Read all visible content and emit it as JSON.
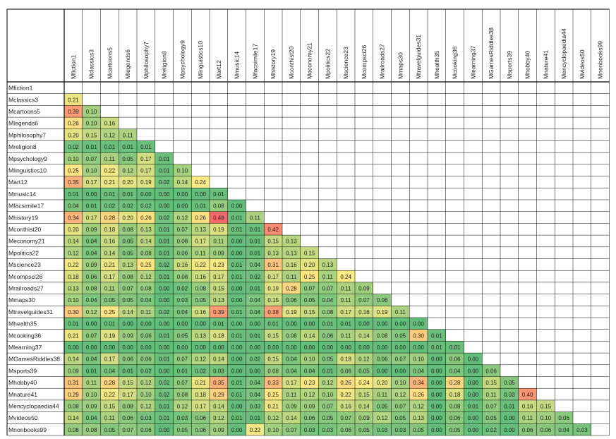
{
  "chart_data": {
    "type": "heatmap",
    "title": "",
    "labels": [
      "Mfiction1",
      "Mclassics3",
      "Mcartoons5",
      "Mlegends6",
      "Mphilosophy7",
      "Mreligion8",
      "Mpsychology9",
      "Mlinguistics10",
      "Mart12",
      "Mmusic14",
      "Mfacsimile17",
      "Mhistory19",
      "Mconthist20",
      "Meconomy21",
      "Mpolitics22",
      "Mscience23",
      "Mcompsci26",
      "Mrailroads27",
      "Mmaps30",
      "Mtravelguides31",
      "Mhealth35",
      "Mcooking36",
      "Mlearning37",
      "MGamesRiddles38",
      "Msports39",
      "Mhobby40",
      "Mnature41",
      "Mencyclopaedia44",
      "Mvideos50",
      "Mnonbooks99"
    ],
    "values": [
      [],
      [
        0.21
      ],
      [
        0.39,
        0.1
      ],
      [
        0.26,
        0.1,
        0.16
      ],
      [
        0.2,
        0.15,
        0.12,
        0.11
      ],
      [
        0.02,
        0.01,
        0.01,
        0.01,
        0.01
      ],
      [
        0.1,
        0.07,
        0.11,
        0.05,
        0.17,
        0.01
      ],
      [
        0.25,
        0.1,
        0.22,
        0.12,
        0.17,
        0.01,
        0.1
      ],
      [
        0.35,
        0.17,
        0.21,
        0.2,
        0.19,
        0.02,
        0.14,
        0.24
      ],
      [
        0.01,
        0.0,
        0.01,
        0.01,
        0.0,
        0.0,
        0.0,
        0.0,
        0.01
      ],
      [
        0.04,
        0.01,
        0.02,
        0.02,
        0.02,
        0.0,
        0.0,
        0.01,
        0.08,
        0.0
      ],
      [
        0.34,
        0.17,
        0.28,
        0.2,
        0.26,
        0.02,
        0.12,
        0.26,
        0.48,
        0.01,
        0.11
      ],
      [
        0.2,
        0.09,
        0.18,
        0.08,
        0.13,
        0.01,
        0.07,
        0.13,
        0.19,
        0.01,
        0.01,
        0.42
      ],
      [
        0.14,
        0.04,
        0.16,
        0.05,
        0.14,
        0.01,
        0.08,
        0.17,
        0.11,
        0.0,
        0.01,
        0.15,
        0.13
      ],
      [
        0.12,
        0.04,
        0.14,
        0.05,
        0.08,
        0.01,
        0.06,
        0.11,
        0.09,
        0.0,
        0.01,
        0.13,
        0.13,
        0.15
      ],
      [
        0.22,
        0.09,
        0.21,
        0.13,
        0.25,
        0.02,
        0.16,
        0.22,
        0.23,
        0.01,
        0.04,
        0.31,
        0.16,
        0.2,
        0.13
      ],
      [
        0.18,
        0.06,
        0.17,
        0.08,
        0.12,
        0.01,
        0.08,
        0.16,
        0.17,
        0.01,
        0.02,
        0.17,
        0.11,
        0.25,
        0.11,
        0.24
      ],
      [
        0.13,
        0.08,
        0.11,
        0.07,
        0.08,
        0.0,
        0.02,
        0.08,
        0.15,
        0.0,
        0.01,
        0.19,
        0.28,
        0.07,
        0.07,
        0.11,
        0.09
      ],
      [
        0.1,
        0.04,
        0.05,
        0.05,
        0.04,
        0.0,
        0.03,
        0.05,
        0.13,
        0.0,
        0.04,
        0.15,
        0.06,
        0.05,
        0.04,
        0.11,
        0.07,
        0.06
      ],
      [
        0.3,
        0.12,
        0.25,
        0.14,
        0.11,
        0.02,
        0.04,
        0.16,
        0.39,
        0.01,
        0.04,
        0.38,
        0.19,
        0.15,
        0.08,
        0.17,
        0.16,
        0.19,
        0.11
      ],
      [
        0.01,
        0.0,
        0.01,
        0.0,
        0.0,
        0.0,
        0.0,
        0.0,
        0.01,
        0.0,
        0.0,
        0.01,
        0.0,
        0.0,
        0.01,
        0.01,
        0.0,
        0.0,
        0.0,
        0.0
      ],
      [
        0.21,
        0.07,
        0.19,
        0.09,
        0.06,
        0.01,
        0.05,
        0.13,
        0.18,
        0.01,
        0.01,
        0.15,
        0.08,
        0.14,
        0.06,
        0.11,
        0.14,
        0.08,
        0.05,
        0.3,
        0.01
      ],
      [
        0.0,
        0.0,
        0.0,
        0.0,
        0.0,
        0.0,
        0.0,
        0.0,
        0.0,
        0.0,
        0.0,
        0.0,
        0.0,
        0.0,
        0.0,
        0.0,
        0.0,
        0.0,
        0.0,
        0.0,
        0.01,
        0.01
      ],
      [
        0.14,
        0.04,
        0.17,
        0.06,
        0.06,
        0.01,
        0.07,
        0.12,
        0.14,
        0.0,
        0.02,
        0.15,
        0.04,
        0.1,
        0.05,
        0.18,
        0.12,
        0.06,
        0.07,
        0.1,
        0.0,
        0.06,
        0.0
      ],
      [
        0.09,
        0.01,
        0.04,
        0.01,
        0.02,
        0.0,
        0.01,
        0.02,
        0.03,
        0.0,
        0.0,
        0.08,
        0.04,
        0.04,
        0.01,
        0.06,
        0.05,
        0.0,
        0.0,
        0.04,
        0.0,
        0.04,
        0.0,
        0.06
      ],
      [
        0.31,
        0.11,
        0.28,
        0.15,
        0.12,
        0.02,
        0.07,
        0.21,
        0.35,
        0.01,
        0.04,
        0.33,
        0.17,
        0.23,
        0.12,
        0.26,
        0.24,
        0.2,
        0.1,
        0.34,
        0.0,
        0.28,
        0.0,
        0.15,
        0.05
      ],
      [
        0.29,
        0.1,
        0.22,
        0.17,
        0.1,
        0.02,
        0.08,
        0.18,
        0.29,
        0.01,
        0.04,
        0.25,
        0.11,
        0.12,
        0.1,
        0.22,
        0.15,
        0.11,
        0.12,
        0.26,
        0.0,
        0.18,
        0.0,
        0.11,
        0.03,
        0.4
      ],
      [
        0.08,
        0.09,
        0.15,
        0.08,
        0.12,
        0.01,
        0.12,
        0.17,
        0.14,
        0.0,
        0.03,
        0.21,
        0.09,
        0.09,
        0.07,
        0.16,
        0.14,
        0.05,
        0.07,
        0.12,
        0.0,
        0.08,
        0.01,
        0.07,
        0.01,
        0.16,
        0.15
      ],
      [
        0.14,
        0.04,
        0.11,
        0.06,
        0.03,
        0.01,
        0.03,
        0.06,
        0.12,
        0.01,
        0.01,
        0.12,
        0.14,
        0.06,
        0.05,
        0.07,
        0.09,
        0.12,
        0.05,
        0.13,
        0.0,
        0.06,
        0.0,
        0.05,
        0.0,
        0.11,
        0.1,
        0.06
      ],
      [
        0.08,
        0.08,
        0.05,
        0.07,
        0.06,
        0.0,
        0.05,
        0.06,
        0.09,
        0.0,
        0.22,
        0.1,
        0.07,
        0.03,
        0.03,
        0.06,
        0.05,
        0.03,
        0.03,
        0.05,
        0.0,
        0.05,
        0.0,
        0.02,
        0.0,
        0.06,
        0.06,
        0.04,
        0.03
      ]
    ],
    "color_scale": {
      "low": "#63be7b",
      "mid": "#ffeb84",
      "high": "#f8696b",
      "min": 0.0,
      "max": 0.48
    },
    "grid": true,
    "legend": "none"
  }
}
